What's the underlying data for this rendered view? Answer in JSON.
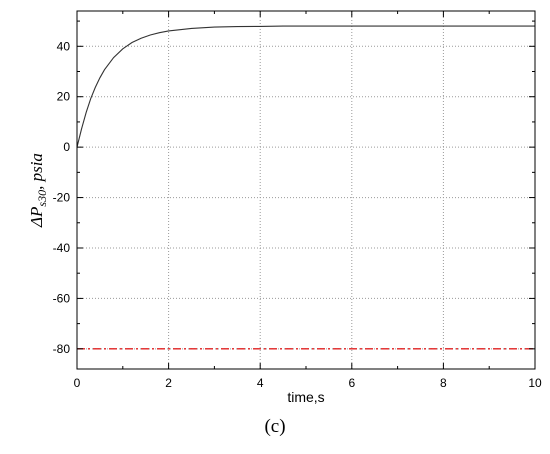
{
  "chart_data": {
    "type": "line",
    "title": "",
    "xlabel": "time,s",
    "ylabel": {
      "prefix": "ΔP",
      "subscript": "s30",
      "suffix": ", psia"
    },
    "xlim": [
      0,
      10
    ],
    "ylim": [
      -88,
      54
    ],
    "x_ticks": [
      0,
      2,
      4,
      6,
      8,
      10
    ],
    "y_ticks": [
      -80,
      -60,
      -40,
      -20,
      0,
      20,
      40
    ],
    "grid": true,
    "series": [
      {
        "color": "#333333",
        "style": "solid",
        "x": [
          0,
          0.1,
          0.2,
          0.3,
          0.4,
          0.5,
          0.6,
          0.8,
          1.0,
          1.2,
          1.4,
          1.6,
          1.8,
          2.0,
          2.5,
          3.0,
          3.5,
          4.0,
          4.5,
          5.0,
          6.0,
          7.0,
          8.0,
          9.0,
          10.0
        ],
        "y": [
          0,
          7.3,
          13.8,
          19.2,
          23.7,
          27.5,
          30.7,
          35.5,
          39.0,
          41.5,
          43.2,
          44.5,
          45.4,
          46.1,
          47.1,
          47.6,
          47.8,
          47.9,
          48.0,
          48.0,
          48.0,
          48.0,
          48.0,
          48.0,
          48.0
        ]
      },
      {
        "color": "#e02020",
        "style": "dash-dot",
        "x": [
          0,
          10
        ],
        "y": [
          -80,
          -80
        ]
      }
    ],
    "caption": "(c)"
  }
}
